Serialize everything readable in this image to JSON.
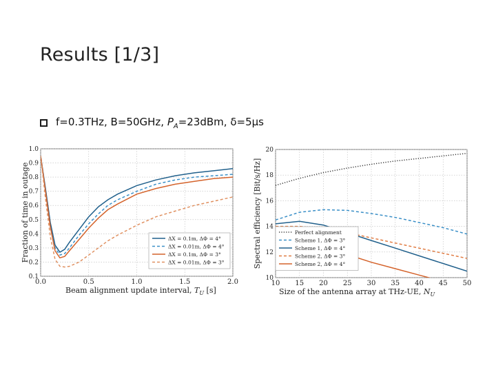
{
  "slide": {
    "title": "Results [1/3]",
    "bullet_icon": "checkbox-square-icon",
    "bullet_prefix": "f=0.3THz, B=50GHz, ",
    "bullet_power_symbol": "P",
    "bullet_power_sub": "A",
    "bullet_suffix": "=23dBm, δ=5μs"
  },
  "chart_data": [
    {
      "type": "line",
      "xlabel": "Beam alignment update interval, T_U [s]",
      "ylabel": "Fraction of time in outage",
      "xlim": [
        0.0,
        2.0
      ],
      "ylim": [
        0.1,
        1.0
      ],
      "xticks": [
        "0.0",
        "0.5",
        "1.0",
        "1.5",
        "2.0"
      ],
      "yticks": [
        "0.1",
        "0.2",
        "0.3",
        "0.4",
        "0.5",
        "0.6",
        "0.7",
        "0.8",
        "0.9",
        "1.0"
      ],
      "grid": true,
      "legend_placement": "lower-right",
      "series": [
        {
          "name": "ΔX = 0.1m, ΔΦ = 4°",
          "color": "#1f5f8b",
          "dash": "solid",
          "x": [
            0.0,
            0.05,
            0.1,
            0.15,
            0.2,
            0.25,
            0.3,
            0.4,
            0.5,
            0.6,
            0.7,
            0.8,
            1.0,
            1.2,
            1.4,
            1.6,
            1.8,
            2.0
          ],
          "y": [
            0.95,
            0.72,
            0.48,
            0.32,
            0.27,
            0.29,
            0.34,
            0.43,
            0.52,
            0.59,
            0.64,
            0.68,
            0.74,
            0.78,
            0.81,
            0.83,
            0.845,
            0.86
          ]
        },
        {
          "name": "ΔX = 0.01m, ΔΦ = 4°",
          "color": "#3a8fc7",
          "dash": "dashed",
          "x": [
            0.0,
            0.05,
            0.1,
            0.15,
            0.2,
            0.25,
            0.3,
            0.4,
            0.5,
            0.6,
            0.7,
            0.8,
            1.0,
            1.2,
            1.4,
            1.6,
            1.8,
            2.0
          ],
          "y": [
            0.95,
            0.7,
            0.45,
            0.3,
            0.25,
            0.26,
            0.3,
            0.39,
            0.47,
            0.54,
            0.6,
            0.64,
            0.7,
            0.75,
            0.78,
            0.8,
            0.81,
            0.82
          ]
        },
        {
          "name": "ΔX = 0.1m, ΔΦ = 3°",
          "color": "#d4622a",
          "dash": "solid",
          "x": [
            0.0,
            0.05,
            0.1,
            0.15,
            0.2,
            0.25,
            0.3,
            0.4,
            0.5,
            0.6,
            0.7,
            0.8,
            1.0,
            1.2,
            1.4,
            1.6,
            1.8,
            2.0
          ],
          "y": [
            0.95,
            0.7,
            0.45,
            0.28,
            0.23,
            0.24,
            0.28,
            0.36,
            0.44,
            0.51,
            0.57,
            0.61,
            0.68,
            0.72,
            0.75,
            0.77,
            0.79,
            0.8
          ]
        },
        {
          "name": "ΔX = 0.01m, ΔΦ = 3°",
          "color": "#e09060",
          "dash": "dashed",
          "x": [
            0.0,
            0.05,
            0.1,
            0.15,
            0.2,
            0.25,
            0.3,
            0.4,
            0.5,
            0.6,
            0.7,
            0.8,
            1.0,
            1.2,
            1.4,
            1.6,
            1.8,
            2.0
          ],
          "y": [
            0.95,
            0.65,
            0.38,
            0.22,
            0.17,
            0.165,
            0.17,
            0.2,
            0.25,
            0.3,
            0.35,
            0.39,
            0.46,
            0.52,
            0.56,
            0.6,
            0.63,
            0.66
          ]
        }
      ]
    },
    {
      "type": "line",
      "xlabel": "Size of the antenna array at THz-UE, N_U",
      "ylabel": "Spectral efficiency [Bit/s/Hz]",
      "xlim": [
        10,
        50
      ],
      "ylim": [
        10,
        20
      ],
      "xticks": [
        "10",
        "15",
        "20",
        "25",
        "30",
        "35",
        "40",
        "45",
        "50"
      ],
      "yticks": [
        "10",
        "12",
        "14",
        "16",
        "18",
        "20"
      ],
      "grid": true,
      "legend_placement": "lower-left",
      "series": [
        {
          "name": "Perfect alignment",
          "color": "#333333",
          "dash": "dotted",
          "x": [
            10,
            15,
            20,
            25,
            30,
            35,
            40,
            45,
            50
          ],
          "y": [
            17.2,
            17.75,
            18.2,
            18.55,
            18.85,
            19.1,
            19.3,
            19.5,
            19.7
          ]
        },
        {
          "name": "Scheme 1, ΔΦ = 3°",
          "color": "#3a8fc7",
          "dash": "dashed",
          "x": [
            10,
            15,
            20,
            25,
            30,
            35,
            40,
            45,
            50
          ],
          "y": [
            14.5,
            15.1,
            15.3,
            15.25,
            15.0,
            14.7,
            14.3,
            13.9,
            13.4
          ]
        },
        {
          "name": "Scheme 1, ΔΦ = 4°",
          "color": "#1f5f8b",
          "dash": "solid",
          "x": [
            10,
            15,
            20,
            25,
            30,
            35,
            40,
            45,
            50
          ],
          "y": [
            14.2,
            14.4,
            14.1,
            13.5,
            12.9,
            12.3,
            11.7,
            11.1,
            10.5
          ]
        },
        {
          "name": "Scheme 2, ΔΦ = 3°",
          "color": "#e07a40",
          "dash": "dashed",
          "x": [
            10,
            15,
            20,
            25,
            30,
            35,
            40,
            45,
            50
          ],
          "y": [
            14.0,
            14.0,
            13.8,
            13.5,
            13.1,
            12.7,
            12.3,
            11.9,
            11.5
          ]
        },
        {
          "name": "Scheme 2, ΔΦ = 4°",
          "color": "#d4622a",
          "dash": "solid",
          "x": [
            10,
            15,
            20,
            25,
            30,
            35,
            40,
            45,
            50
          ],
          "y": [
            13.2,
            12.8,
            12.3,
            11.8,
            11.2,
            10.7,
            10.2,
            9.7,
            9.0
          ]
        }
      ]
    }
  ]
}
